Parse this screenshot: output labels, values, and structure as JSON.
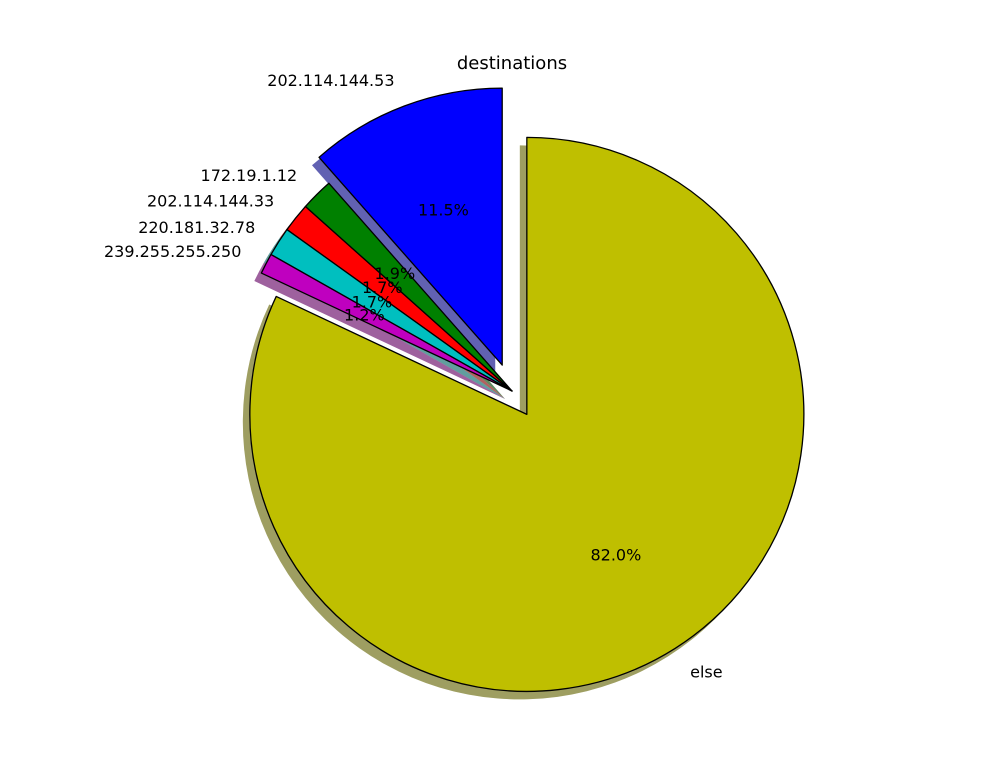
{
  "chart_data": {
    "type": "pie",
    "title": "destinations",
    "slices": [
      {
        "label": "202.114.144.53",
        "value": 11.5,
        "pct_label": "11.5%",
        "color": "#0000ff",
        "explode": true
      },
      {
        "label": "172.19.1.12",
        "value": 1.9,
        "pct_label": "1.9%",
        "color": "#008000",
        "explode": false
      },
      {
        "label": "202.114.144.33",
        "value": 1.7,
        "pct_label": "1.7%",
        "color": "#ff0000",
        "explode": false
      },
      {
        "label": "220.181.32.78",
        "value": 1.7,
        "pct_label": "1.7%",
        "color": "#00bfbf",
        "explode": false
      },
      {
        "label": "239.255.255.250",
        "value": 1.2,
        "pct_label": "1.2%",
        "color": "#bf00bf",
        "explode": false
      },
      {
        "label": "else",
        "value": 82.0,
        "pct_label": "82.0%",
        "color": "#bfbf00",
        "explode": true
      }
    ],
    "start_angle_deg": 90,
    "direction": "counterclockwise",
    "shadow": true,
    "legend": "none",
    "grid": false
  }
}
